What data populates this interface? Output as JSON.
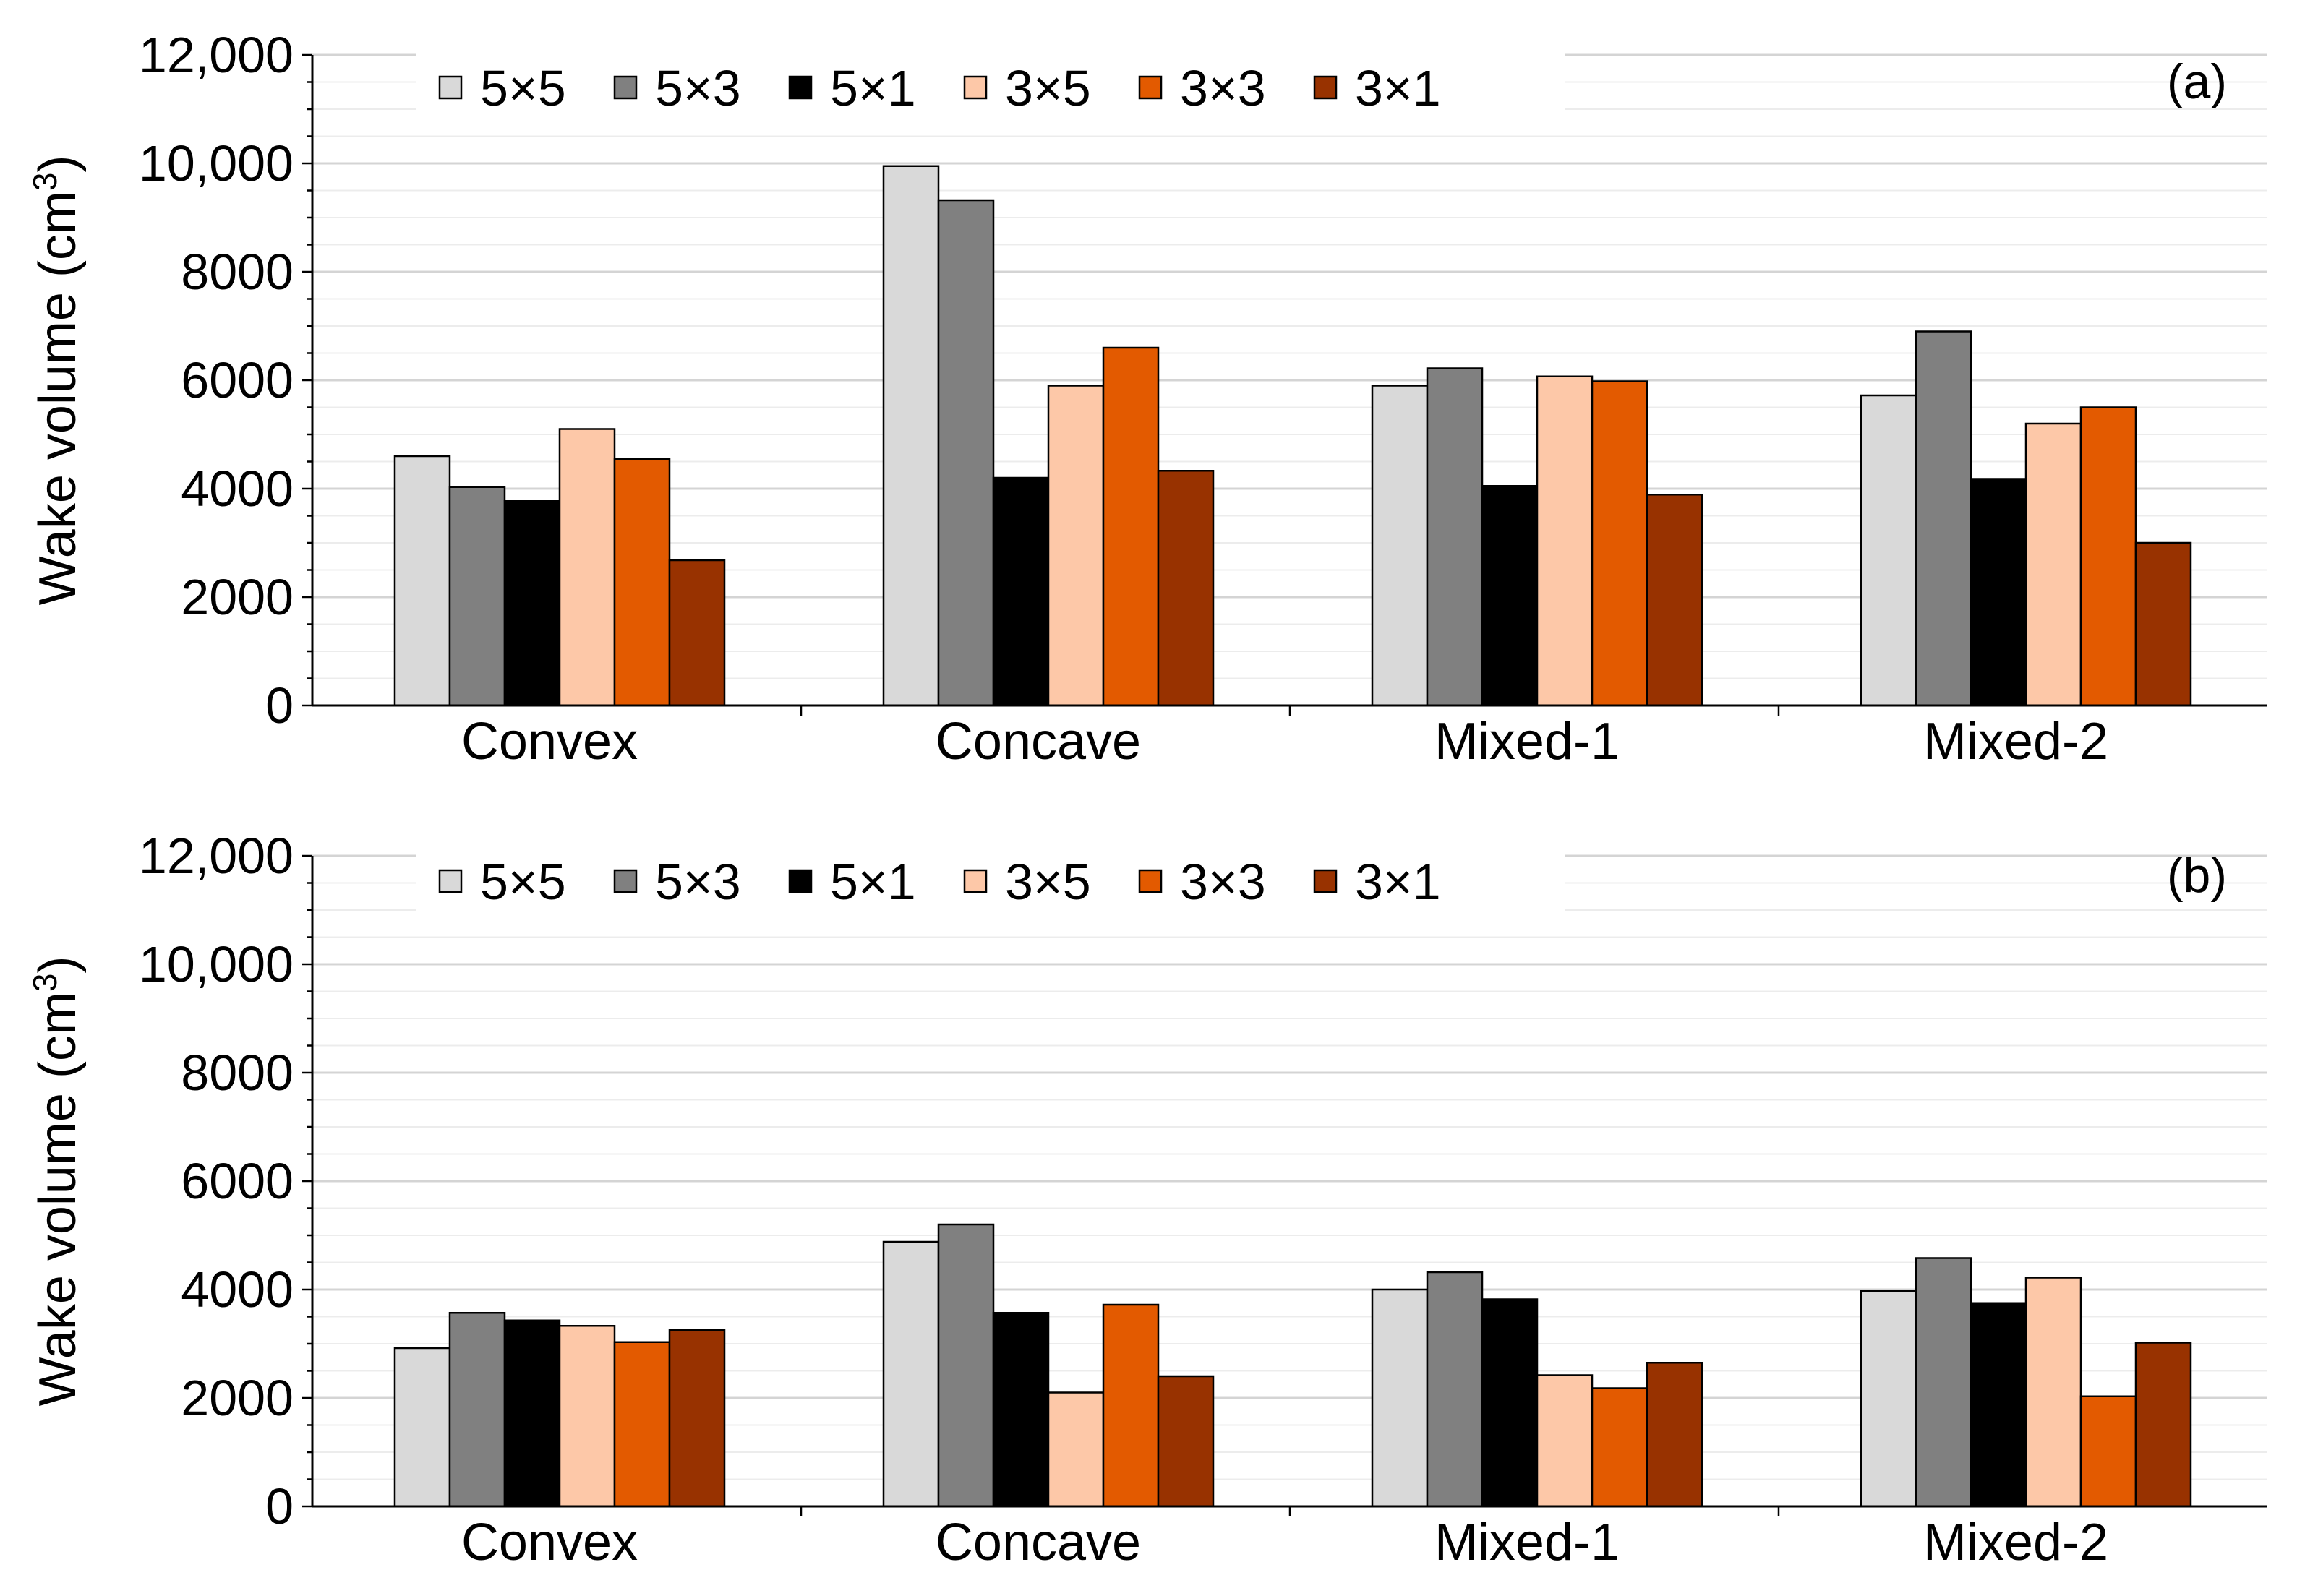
{
  "figure": {
    "panels": [
      {
        "panel_label": "(a)",
        "ylabel_main": "Wake volume (cm",
        "ylabel_sup": "3",
        "ylabel_close": ")"
      },
      {
        "panel_label": "(b)",
        "ylabel_main": "Wake volume (cm",
        "ylabel_sup": "3",
        "ylabel_close": ")"
      }
    ]
  },
  "chart_data": [
    {
      "type": "bar",
      "title": "(a)",
      "xlabel": "",
      "ylabel": "Wake volume (cm3)",
      "ylim": [
        0,
        12000
      ],
      "yticks": [
        0,
        2000,
        4000,
        6000,
        8000,
        10000,
        12000
      ],
      "ytick_labels": [
        "0",
        "2000",
        "4000",
        "6000",
        "8000",
        "10,000",
        "12,000"
      ],
      "categories": [
        "Convex",
        "Concave",
        "Mixed-1",
        "Mixed-2"
      ],
      "legend_position": "top",
      "grid": true,
      "series": [
        {
          "name": "5×5",
          "color": "#d9d9d9",
          "values": [
            4600,
            9950,
            5900,
            5720
          ]
        },
        {
          "name": "5×3",
          "color": "#808080",
          "values": [
            4030,
            9320,
            6220,
            6900
          ]
        },
        {
          "name": "5×1",
          "color": "#000000",
          "values": [
            3770,
            4200,
            4050,
            4180
          ]
        },
        {
          "name": "3×5",
          "color": "#fdc8a8",
          "values": [
            5100,
            5900,
            6070,
            5200
          ]
        },
        {
          "name": "3×3",
          "color": "#e35a00",
          "values": [
            4550,
            6600,
            5980,
            5500
          ]
        },
        {
          "name": "3×1",
          "color": "#983200",
          "values": [
            2680,
            4330,
            3890,
            3000
          ]
        }
      ]
    },
    {
      "type": "bar",
      "title": "(b)",
      "xlabel": "",
      "ylabel": "Wake volume (cm3)",
      "ylim": [
        0,
        12000
      ],
      "yticks": [
        0,
        2000,
        4000,
        6000,
        8000,
        10000,
        12000
      ],
      "ytick_labels": [
        "0",
        "2000",
        "4000",
        "6000",
        "8000",
        "10,000",
        "12,000"
      ],
      "categories": [
        "Convex",
        "Concave",
        "Mixed-1",
        "Mixed-2"
      ],
      "legend_position": "top",
      "grid": true,
      "series": [
        {
          "name": "5×5",
          "color": "#d9d9d9",
          "values": [
            2920,
            4880,
            4000,
            3970
          ]
        },
        {
          "name": "5×3",
          "color": "#808080",
          "values": [
            3570,
            5200,
            4320,
            4580
          ]
        },
        {
          "name": "5×1",
          "color": "#000000",
          "values": [
            3430,
            3570,
            3820,
            3750
          ]
        },
        {
          "name": "3×5",
          "color": "#fdc8a8",
          "values": [
            3330,
            2100,
            2420,
            4220
          ]
        },
        {
          "name": "3×3",
          "color": "#e35a00",
          "values": [
            3030,
            3720,
            2180,
            2030
          ]
        },
        {
          "name": "3×1",
          "color": "#983200",
          "values": [
            3250,
            2400,
            2650,
            3020
          ]
        }
      ]
    }
  ]
}
